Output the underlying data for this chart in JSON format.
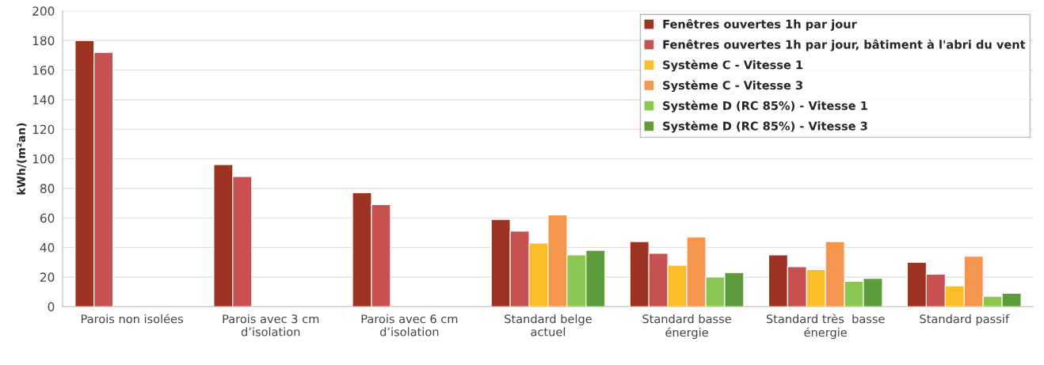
{
  "chart_data": {
    "type": "bar",
    "ylabel": "kWh/(m²an)",
    "categories": [
      "Parois non isolées",
      "Parois avec 3 cm\nd’isolation",
      "Parois avec 6 cm\nd’isolation",
      "Standard belge\nactuel",
      "Standard basse\nénergie",
      "Standard très  basse\nénergie",
      "Standard passif"
    ],
    "series": [
      {
        "name": "Fenêtres ouvertes 1h par jour",
        "color": "#9c3320",
        "values": [
          180,
          96,
          77,
          59,
          44,
          35,
          30
        ]
      },
      {
        "name": "Fenêtres ouvertes 1h par jour, bâtiment à l'abri du vent",
        "color": "#c75050",
        "values": [
          172,
          88,
          69,
          51,
          36,
          27,
          22
        ]
      },
      {
        "name": "Système C - Vitesse 1",
        "color": "#fbbd2a",
        "values": [
          null,
          null,
          null,
          43,
          28,
          25,
          14
        ]
      },
      {
        "name": "Système C - Vitesse 3",
        "color": "#f5964f",
        "values": [
          null,
          null,
          null,
          62,
          47,
          44,
          34
        ]
      },
      {
        "name": "Système D (RC 85%) - Vitesse 1",
        "color": "#8cc653",
        "values": [
          null,
          null,
          null,
          35,
          20,
          17,
          7
        ]
      },
      {
        "name": "Système D (RC 85%) - Vitesse 3",
        "color": "#5c9c3a",
        "values": [
          null,
          null,
          null,
          38,
          23,
          19,
          9
        ]
      }
    ],
    "ylim": [
      0,
      200
    ],
    "yticks": [
      0,
      20,
      40,
      60,
      80,
      100,
      120,
      140,
      160,
      180,
      200
    ],
    "grid": "y",
    "legend": "top right"
  }
}
